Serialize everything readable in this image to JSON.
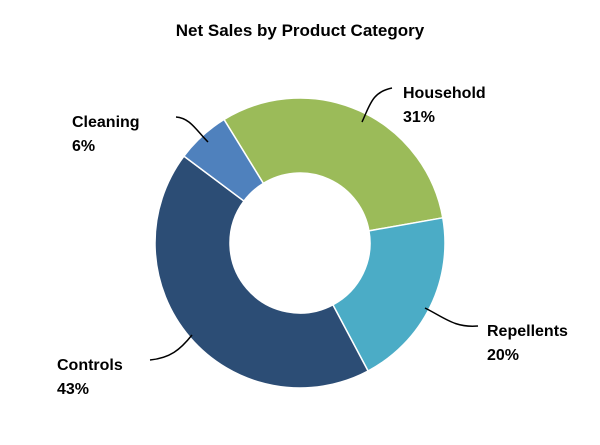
{
  "chart_data": {
    "type": "pie",
    "variant": "donut",
    "title": "Net Sales by Product Category",
    "slices": [
      {
        "label": "Household",
        "value": 31,
        "display": "31%",
        "color": "#9BBB59"
      },
      {
        "label": "Repellents",
        "value": 20,
        "display": "20%",
        "color": "#4BACC6"
      },
      {
        "label": "Controls",
        "value": 43,
        "display": "43%",
        "color": "#2C4D75"
      },
      {
        "label": "Cleaning",
        "value": 6,
        "display": "6%",
        "color": "#4F81BD"
      }
    ],
    "legend": "none"
  }
}
